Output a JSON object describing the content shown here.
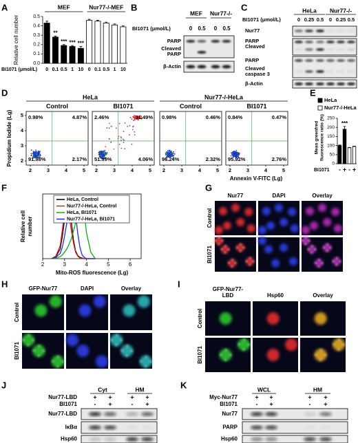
{
  "chart_data": [
    {
      "type": "bar",
      "ylabel": "Relative cell number",
      "xlabel": "BI1071 (μmol/L)",
      "groups": [
        "MEF",
        "Nur77-/-MEF"
      ],
      "categories": [
        "0",
        "0.1",
        "0.5",
        "1",
        "10",
        "0",
        "0.1",
        "0.5",
        "1",
        "10"
      ],
      "values": [
        0.43,
        0.28,
        0.19,
        0.18,
        0.16,
        0.46,
        0.45,
        0.43,
        0.41,
        0.39
      ],
      "errors": [
        0.02,
        0.01,
        0.01,
        0.01,
        0.02,
        0.01,
        0.01,
        0.01,
        0.01,
        0.01
      ],
      "value_annotations": [
        null,
        "**",
        "***",
        "***",
        "***",
        null,
        null,
        null,
        null,
        null
      ],
      "colors": [
        "#000000",
        "#000000",
        "#000000",
        "#000000",
        "#000000",
        "#ffffff",
        "#ffffff",
        "#ffffff",
        "#ffffff",
        "#ffffff"
      ],
      "ylim": [
        0,
        0.5
      ],
      "yticks": [
        {
          "value": 0,
          "label": "0.0"
        },
        0.1,
        0.2,
        0.3,
        0.4,
        0.5
      ]
    },
    {
      "type": "bar",
      "ylabel": [
        "Mean greenfred",
        "fluorescence ratio (%)"
      ],
      "xlabel": "BI1071",
      "legend": [
        {
          "name": "HeLa",
          "color": "#000000"
        },
        {
          "name": "Nur77-/-HeLa",
          "color": "#ffffff"
        }
      ],
      "categories": [
        "-",
        "+",
        "-",
        "+"
      ],
      "values": [
        100,
        190,
        88,
        95
      ],
      "errors": [
        3,
        15,
        2,
        2
      ],
      "value_annotations": [
        null,
        "***",
        null,
        null
      ],
      "colors": [
        "#000000",
        "#000000",
        "#ffffff",
        "#ffffff"
      ],
      "ylim": [
        0,
        250
      ],
      "yticks": [
        0,
        50,
        100,
        150,
        200,
        250
      ]
    },
    {
      "type": "line",
      "ylabel": [
        "Relative cell",
        "number"
      ],
      "xlabel": "Mito-ROS fluorescence (Lg)",
      "x": [
        2.4,
        2.6,
        2.8,
        2.9,
        3.0,
        3.1,
        3.2,
        3.3,
        3.4,
        3.5,
        3.6,
        3.7,
        3.8,
        3.9,
        4.0,
        4.2,
        4.4
      ],
      "series": [
        {
          "name": "HeLa, Control",
          "color": "#000000",
          "values": [
            0,
            3,
            15,
            35,
            60,
            80,
            88,
            60,
            30,
            12,
            5,
            2,
            1,
            0,
            0,
            0,
            0
          ]
        },
        {
          "name": "Nur77-/-HeLa, Control",
          "color": "#e02020",
          "values": [
            0,
            4,
            20,
            45,
            75,
            90,
            70,
            45,
            25,
            10,
            4,
            1,
            0,
            0,
            0,
            0,
            0
          ]
        },
        {
          "name": "HeLa, BI1071",
          "color": "#1aa31a",
          "values": [
            0,
            1,
            3,
            6,
            10,
            15,
            22,
            30,
            42,
            55,
            70,
            85,
            92,
            70,
            40,
            10,
            0
          ]
        },
        {
          "name": "Nur77-/-HeLa, BI1071",
          "color": "#1a2ee0",
          "values": [
            0,
            2,
            8,
            18,
            35,
            55,
            72,
            85,
            88,
            70,
            40,
            18,
            6,
            2,
            0,
            0,
            0
          ]
        }
      ],
      "xlim": [
        2,
        6.5
      ],
      "xticks": [
        2,
        3,
        4,
        5,
        6
      ],
      "ylim": [
        0,
        100
      ]
    }
  ],
  "figure": {
    "letters": [
      "A",
      "B",
      "C",
      "D",
      "E",
      "F",
      "G",
      "H",
      "I",
      "J",
      "K"
    ],
    "B": {
      "groups": [
        "MEF",
        "Nur77-/-"
      ],
      "dose_label": "BI1071 (μmol/L)",
      "lanes": [
        "0",
        "0.5",
        "0",
        "0.5"
      ],
      "bands": [
        [
          "PARP"
        ],
        [
          "Cleaved",
          "PARP"
        ],
        [
          "β-Actin"
        ]
      ]
    },
    "C": {
      "groups": [
        "HeLa",
        "Nur77-/-"
      ],
      "dose_label": "BI1071 (μmol/L)",
      "lanes": [
        "0",
        "0.25",
        "0.5",
        "0",
        "0.25",
        "0.5"
      ],
      "bands": [
        [
          "Nur77"
        ],
        [
          "PARP"
        ],
        [
          "Cleaved"
        ],
        [
          "PARP"
        ],
        [
          "Cleaved",
          "caspase 3"
        ],
        [
          "β-Actin"
        ]
      ]
    },
    "D": {
      "groups": [
        "HeLa",
        "Nur77-/-HeLa"
      ],
      "plots": [
        {
          "title": "Control",
          "quadrants": [
            "0.98%",
            "4.87%",
            "91.98%",
            "2.17%"
          ]
        },
        {
          "title": "BI1071",
          "quadrants": [
            "2.46%",
            "31.49%",
            "51.99%",
            "4.06%"
          ]
        },
        {
          "title": "Control",
          "quadrants": [
            "0.98%",
            "0.46%",
            "96.24%",
            "2.32%"
          ]
        },
        {
          "title": "BI1071",
          "quadrants": [
            "0.84%",
            "0.47%",
            "95.92%",
            "2.76%"
          ]
        }
      ],
      "ylabel": "Propidium Iodide (Lg)",
      "xlabel": "Annexin V-FITC (Lg)",
      "xticks": [
        2,
        3,
        4,
        5
      ],
      "yticks": [
        2,
        3,
        4,
        5
      ]
    },
    "G": {
      "columns": [
        [
          "Nur77"
        ],
        [
          "DAPI"
        ],
        [
          "Overlay"
        ]
      ],
      "rows": [
        "Control",
        "BI1071"
      ]
    },
    "H": {
      "columns": [
        [
          "GFP-Nur77"
        ],
        [
          "DAPI"
        ],
        [
          "Overlay"
        ]
      ],
      "rows": [
        "Control",
        "BI1071"
      ]
    },
    "I": {
      "columns": [
        [
          "GFP-Nur77-",
          "LBD"
        ],
        [
          "Hsp60"
        ],
        [
          "Overlay"
        ]
      ],
      "rows": [
        "Control",
        "BI1071"
      ]
    },
    "J": {
      "groups": [
        "Cyt",
        "HM"
      ],
      "conditions": [
        {
          "label": "Nur77-LBD",
          "values": [
            "+",
            "+",
            "+",
            "+"
          ]
        },
        {
          "label": "BI1071",
          "values": [
            "-",
            "+",
            "-",
            "+"
          ]
        }
      ],
      "bands": [
        "Nur77-LBD",
        "IκBα",
        "Hsp60"
      ]
    },
    "K": {
      "groups": [
        "WCL",
        "HM"
      ],
      "conditions": [
        {
          "label": "Myc-Nur77",
          "values": [
            "+",
            "+",
            "+",
            "+"
          ]
        },
        {
          "label": "BI1071",
          "values": [
            "-",
            "+",
            "-",
            "+"
          ]
        }
      ],
      "bands": [
        "Nur77",
        "PARP",
        "Hsp60"
      ]
    }
  }
}
